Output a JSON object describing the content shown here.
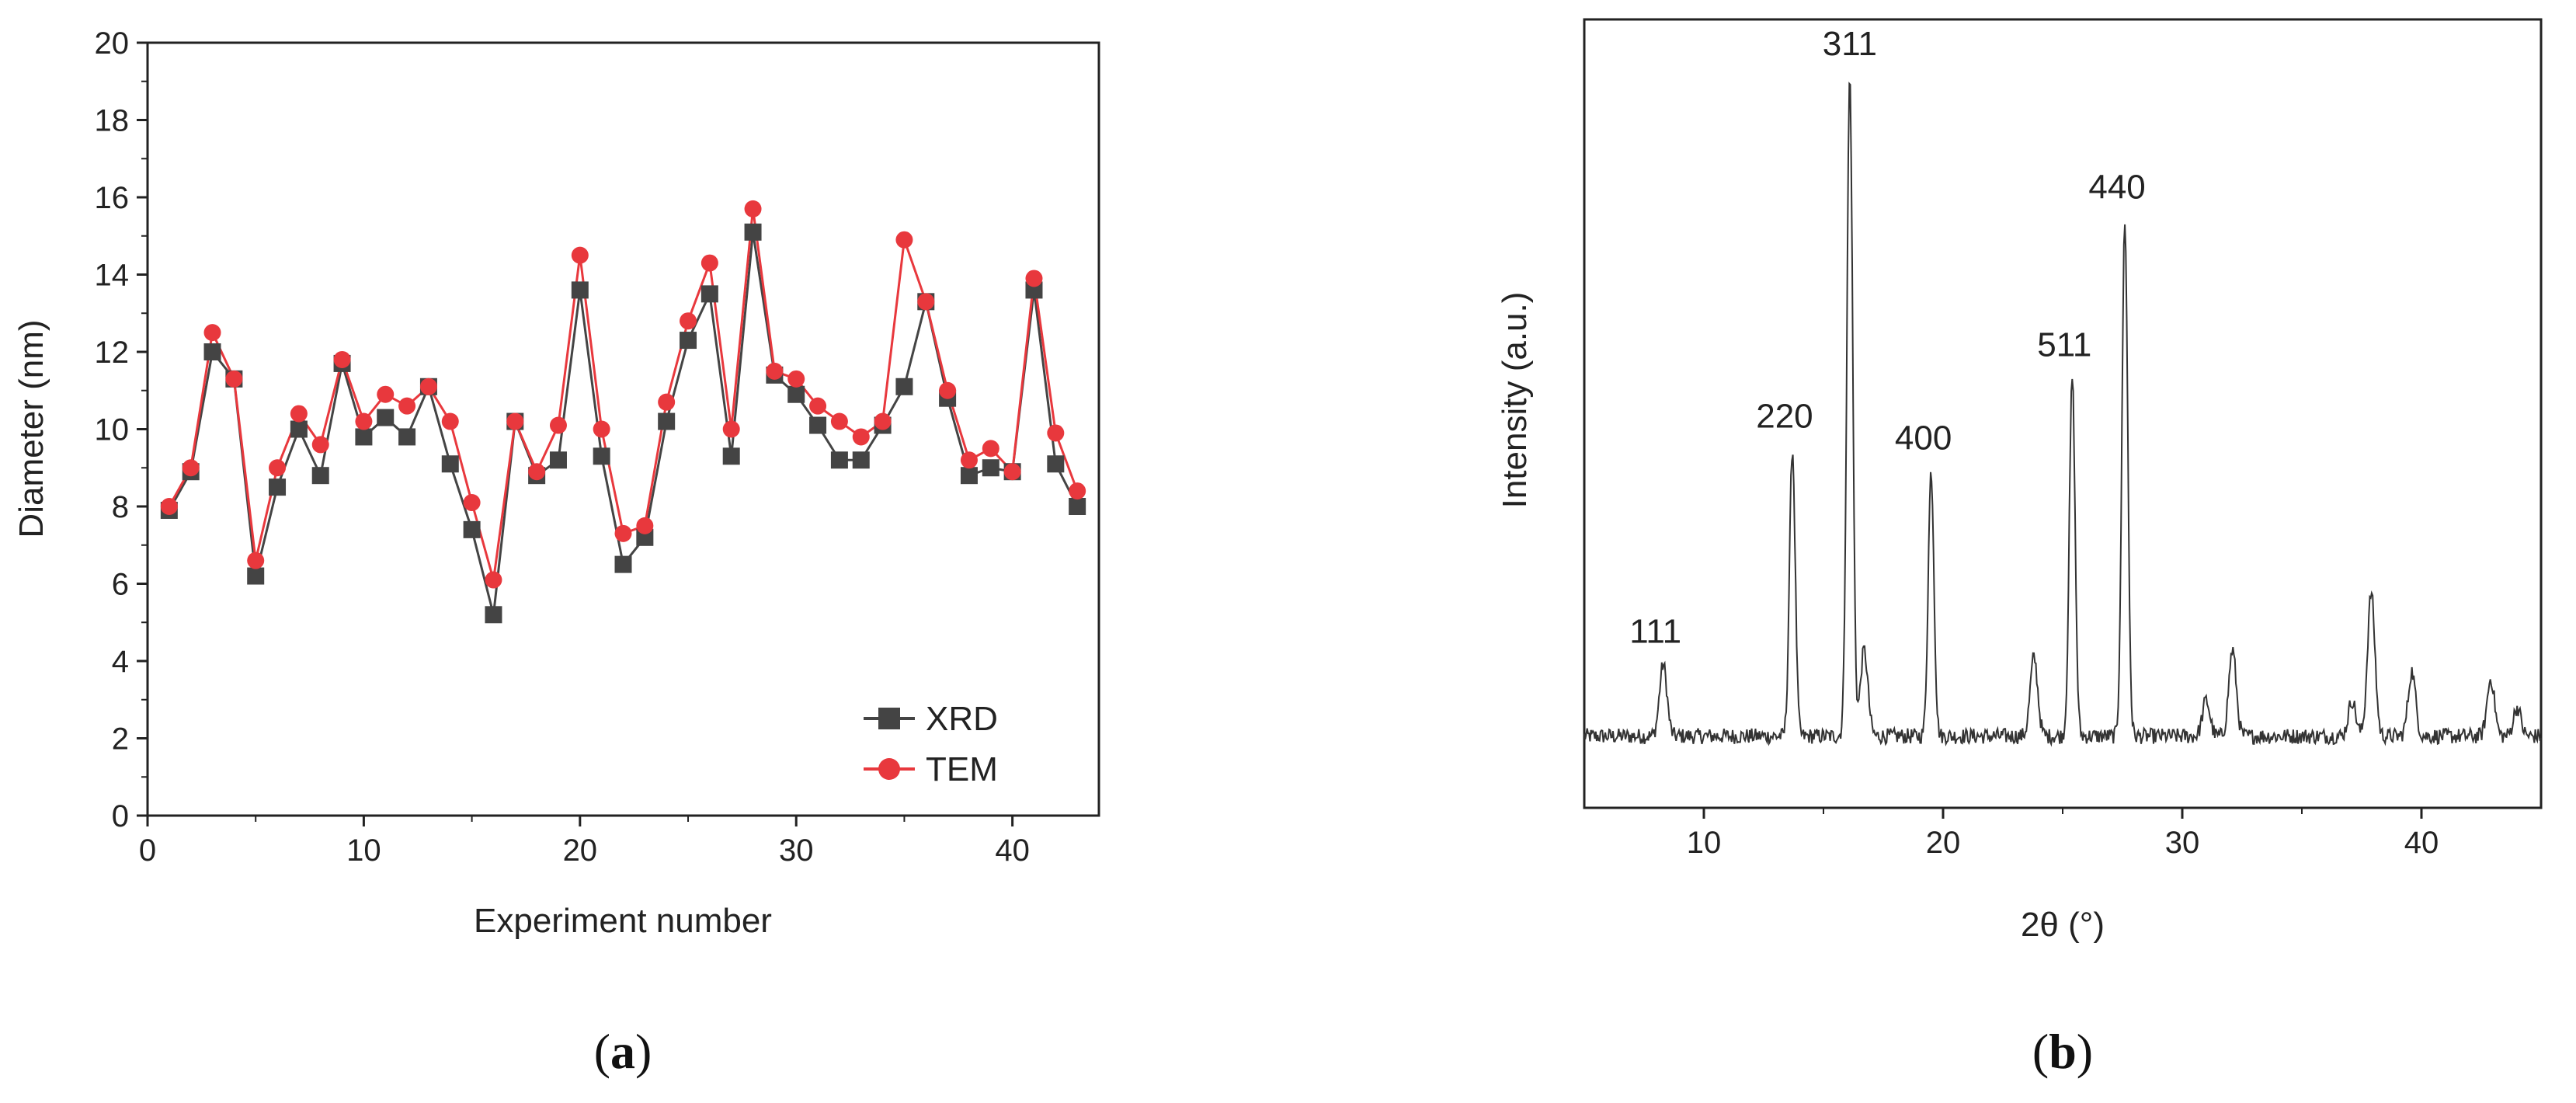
{
  "chart_data": [
    {
      "panel": "a",
      "type": "line",
      "title": "",
      "xlabel": "Experiment number",
      "ylabel": "Diameter (nm)",
      "xlim": [
        0,
        44
      ],
      "ylim": [
        0,
        20
      ],
      "xticks": [
        0,
        10,
        20,
        30,
        40
      ],
      "yticks": [
        0,
        2,
        4,
        6,
        8,
        10,
        12,
        14,
        16,
        18,
        20
      ],
      "legend_position": "bottom-right",
      "x": [
        1,
        2,
        3,
        4,
        5,
        6,
        7,
        8,
        9,
        10,
        11,
        12,
        13,
        14,
        15,
        16,
        17,
        18,
        19,
        20,
        21,
        22,
        23,
        24,
        25,
        26,
        27,
        28,
        29,
        30,
        31,
        32,
        33,
        34,
        35,
        36,
        37,
        38,
        39,
        40,
        41,
        42,
        43
      ],
      "series": [
        {
          "name": "XRD",
          "color": "#444444",
          "marker": "square",
          "values": [
            7.9,
            8.9,
            12.0,
            11.3,
            6.2,
            8.5,
            10.0,
            8.8,
            11.7,
            9.8,
            10.3,
            9.8,
            11.1,
            9.1,
            7.4,
            5.2,
            10.2,
            8.8,
            9.2,
            13.6,
            9.3,
            6.5,
            7.2,
            10.2,
            12.3,
            13.5,
            9.3,
            15.1,
            11.4,
            10.9,
            10.1,
            9.2,
            9.2,
            10.1,
            11.1,
            13.3,
            10.8,
            8.8,
            9.0,
            8.9,
            13.6,
            9.1,
            8.0
          ]
        },
        {
          "name": "TEM",
          "color": "#e8383d",
          "marker": "circle",
          "values": [
            8.0,
            9.0,
            12.5,
            11.3,
            6.6,
            9.0,
            10.4,
            9.6,
            11.8,
            10.2,
            10.9,
            10.6,
            11.1,
            10.2,
            8.1,
            6.1,
            10.2,
            8.9,
            10.1,
            14.5,
            10.0,
            7.3,
            7.5,
            10.7,
            12.8,
            14.3,
            10.0,
            15.7,
            11.5,
            11.3,
            10.6,
            10.2,
            9.8,
            10.2,
            14.9,
            13.3,
            11.0,
            9.2,
            9.5,
            8.9,
            13.9,
            9.9,
            8.4
          ]
        }
      ],
      "panel_label": "a"
    },
    {
      "panel": "b",
      "type": "line",
      "title": "",
      "xlabel": "2θ (°)",
      "ylabel": "Intensity (a.u.)",
      "xlim": [
        5,
        45
      ],
      "xticks": [
        10,
        20,
        30,
        40
      ],
      "baseline": 10,
      "ylim": [
        0,
        110
      ],
      "color": "#333333",
      "peaks": [
        {
          "label": "111",
          "x": 8.3,
          "height": 10
        },
        {
          "label": "220",
          "x": 13.7,
          "height": 40
        },
        {
          "label": "311",
          "x": 16.1,
          "height": 92
        },
        {
          "label": "",
          "x": 16.7,
          "height": 12
        },
        {
          "label": "400",
          "x": 19.5,
          "height": 37
        },
        {
          "label": "",
          "x": 23.8,
          "height": 11
        },
        {
          "label": "511",
          "x": 25.4,
          "height": 50
        },
        {
          "label": "440",
          "x": 27.6,
          "height": 72
        },
        {
          "label": "",
          "x": 31.0,
          "height": 5
        },
        {
          "label": "",
          "x": 32.1,
          "height": 12
        },
        {
          "label": "",
          "x": 37.1,
          "height": 5
        },
        {
          "label": "",
          "x": 37.9,
          "height": 20
        },
        {
          "label": "",
          "x": 39.6,
          "height": 9
        },
        {
          "label": "",
          "x": 42.9,
          "height": 8
        },
        {
          "label": "",
          "x": 44.0,
          "height": 4
        }
      ],
      "panel_label": "b"
    }
  ]
}
